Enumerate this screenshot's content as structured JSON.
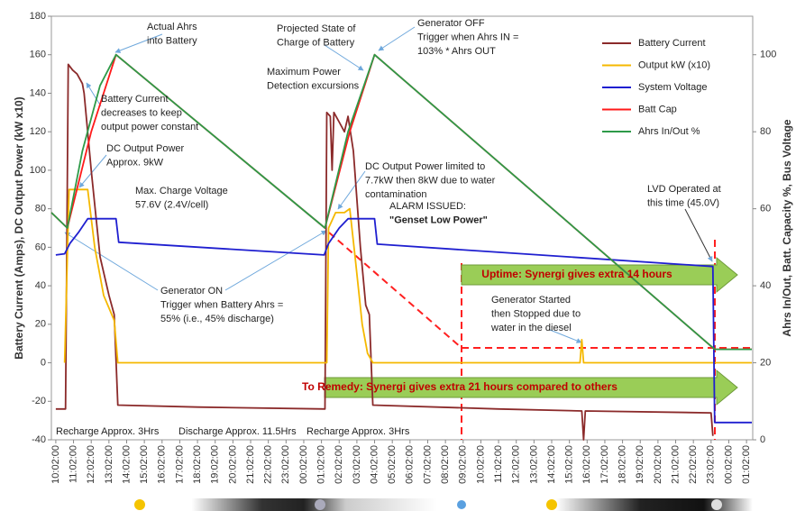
{
  "chart_data": {
    "type": "line",
    "ylabel": "Battery Current (Amps), DC Output Power (kW x10)",
    "y2label": "Ahrs In/Out, Batt. Capacity %, Bus Voltage",
    "xlim": [
      -0.25,
      39.35
    ],
    "ylim": [
      -40,
      180
    ],
    "yticks": [
      -40,
      -20,
      0,
      20,
      40,
      60,
      80,
      100,
      120,
      140,
      160,
      180
    ],
    "y2lim": [
      0,
      110
    ],
    "y2ticks": [
      0,
      20,
      40,
      60,
      80,
      100
    ],
    "xticks": [
      {
        "value": 0,
        "label": "10:02:00"
      },
      {
        "value": 1,
        "label": "11:02:00"
      },
      {
        "value": 2,
        "label": "12:02:00"
      },
      {
        "value": 3,
        "label": "13:02:00"
      },
      {
        "value": 4,
        "label": "14:02:00"
      },
      {
        "value": 5,
        "label": "15:02:00"
      },
      {
        "value": 6,
        "label": "16:02:00"
      },
      {
        "value": 7,
        "label": "17:02:00"
      },
      {
        "value": 8,
        "label": "18:02:00"
      },
      {
        "value": 9,
        "label": "19:02:00"
      },
      {
        "value": 10,
        "label": "20:02:00"
      },
      {
        "value": 11,
        "label": "21:02:00"
      },
      {
        "value": 12,
        "label": "22:02:00"
      },
      {
        "value": 13,
        "label": "23:02:00"
      },
      {
        "value": 14,
        "label": "00:02:00"
      },
      {
        "value": 15,
        "label": "01:02:00"
      },
      {
        "value": 16,
        "label": "02:02:00"
      },
      {
        "value": 17,
        "label": "03:02:00"
      },
      {
        "value": 18,
        "label": "04:02:00"
      },
      {
        "value": 19,
        "label": "05:02:00"
      },
      {
        "value": 20,
        "label": "06:02:00"
      },
      {
        "value": 21,
        "label": "07:02:00"
      },
      {
        "value": 22,
        "label": "08:02:00"
      },
      {
        "value": 23,
        "label": "09:02:00"
      },
      {
        "value": 24,
        "label": "10:02:00"
      },
      {
        "value": 25,
        "label": "11:02:00"
      },
      {
        "value": 26,
        "label": "12:02:00"
      },
      {
        "value": 27,
        "label": "13:02:00"
      },
      {
        "value": 28,
        "label": "14:02:00"
      },
      {
        "value": 29,
        "label": "15:02:00"
      },
      {
        "value": 30,
        "label": "16:02:00"
      },
      {
        "value": 31,
        "label": "17:02:00"
      },
      {
        "value": 32,
        "label": "18:02:00"
      },
      {
        "value": 33,
        "label": "19:02:00"
      },
      {
        "value": 34,
        "label": "20:02:00"
      },
      {
        "value": 35,
        "label": "21:02:00"
      },
      {
        "value": 36,
        "label": "22:02:00"
      },
      {
        "value": 37,
        "label": "23:02:00"
      },
      {
        "value": 38,
        "label": "00:02:00"
      },
      {
        "value": 39,
        "label": "01:02:00"
      }
    ],
    "series": [
      {
        "name": "Battery Current",
        "color": "#8b2a2a",
        "x": [
          0,
          0.55,
          0.7,
          0.95,
          1.2,
          1.5,
          1.6,
          2.0,
          2.5,
          3.0,
          3.3,
          3.5,
          8,
          15.2,
          15.3,
          15.5,
          15.6,
          15.7,
          16.0,
          16.3,
          16.5,
          16.8,
          17.2,
          17.5,
          17.7,
          17.9,
          25,
          29.7,
          29.8,
          29.9,
          37.0,
          37.1
        ],
        "values": [
          -24,
          -24,
          155,
          152,
          150,
          145,
          140,
          100,
          55,
          35,
          25,
          -22,
          -23,
          -24,
          130,
          128,
          100,
          130,
          125,
          120,
          128,
          110,
          60,
          30,
          25,
          -22,
          -24,
          -25,
          -40,
          -25,
          -26,
          -38
        ]
      },
      {
        "name": "Output kW (x10)",
        "color": "#f5b800",
        "x": [
          0.5,
          0.75,
          1.8,
          2.2,
          2.7,
          3.3,
          3.5,
          15.3,
          15.4,
          15.8,
          16.3,
          16.6,
          16.9,
          17.3,
          17.6,
          17.9,
          29.6,
          29.7,
          29.8,
          39.3
        ],
        "values": [
          0,
          90,
          90,
          60,
          35,
          22,
          0,
          0,
          70,
          78,
          78,
          80,
          55,
          20,
          5,
          0,
          0,
          12,
          0,
          0
        ]
      },
      {
        "name": "System Voltage",
        "color": "#1f1fd0",
        "axis": "y2",
        "x": [
          0,
          0.5,
          0.8,
          1.3,
          1.8,
          3.4,
          3.55,
          15.15,
          15.4,
          16.0,
          16.5,
          18.0,
          18.15,
          37.1,
          37.2,
          39.3
        ],
        "values": [
          48,
          48.3,
          51,
          54,
          57.4,
          57.4,
          51.3,
          48,
          51,
          55,
          57.4,
          57.4,
          50.8,
          45,
          4.5,
          4.5
        ]
      },
      {
        "name": "Batt Cap",
        "color": "#ff1a1a",
        "axis": "y2",
        "x": [
          -0.25,
          0.65,
          2.0,
          3.4,
          15.2,
          16.6,
          18.0,
          37.2,
          39.3
        ],
        "values": [
          59,
          55,
          80,
          100,
          55,
          80,
          100,
          23.5,
          23.5
        ]
      },
      {
        "name": "Ahrs In/Out %",
        "color": "#2e9a48",
        "axis": "y2",
        "x": [
          -0.25,
          0.65,
          1.5,
          2.5,
          3.4,
          15.2,
          16.5,
          18.0,
          37.2,
          39.3
        ],
        "values": [
          59,
          55,
          75,
          92,
          100,
          55,
          80,
          100,
          23.5,
          23.5
        ]
      }
    ],
    "annotations": [
      {
        "lines": [
          "Actual Ahrs",
          "into Battery"
        ]
      },
      {
        "lines": [
          "Projected State of",
          "Charge of Battery"
        ]
      },
      {
        "lines": [
          "Generator OFF",
          "Trigger when Ahrs IN =",
          "103% * Ahrs OUT"
        ]
      },
      {
        "lines": [
          "Maximum Power",
          "Detection excursions"
        ]
      },
      {
        "lines": [
          "Battery Current",
          "decreases to keep",
          "output power constant"
        ]
      },
      {
        "lines": [
          "DC Output Power",
          "Approx. 9kW"
        ]
      },
      {
        "lines": [
          "Max. Charge Voltage",
          "57.6V (2.4V/cell)"
        ]
      },
      {
        "lines": [
          "DC Output Power limited to",
          "7.7kW then 8kW due to water",
          "contamination"
        ]
      },
      {
        "lines": [
          "ALARM ISSUED:",
          "\"Genset Low Power\""
        ]
      },
      {
        "lines": [
          "LVD Operated at",
          "this time (45.0V)"
        ]
      },
      {
        "lines": [
          "Generator ON",
          "Trigger when Battery Ahrs =",
          "55% (i.e., 45% discharge)"
        ]
      },
      {
        "lines": [
          "Generator Started",
          "then Stopped due to",
          "water in the diesel"
        ]
      },
      {
        "lines": [
          "Recharge Approx. 3Hrs"
        ]
      },
      {
        "lines": [
          "Discharge Approx. 11.5Hrs"
        ]
      },
      {
        "lines": [
          "Recharge Approx. 3Hrs"
        ]
      }
    ],
    "callouts": [
      {
        "text": "Uptime: Synergi gives extra 14 hours"
      },
      {
        "text": "To Remedy: Synergi gives extra 21 hours compared to others"
      }
    ]
  }
}
